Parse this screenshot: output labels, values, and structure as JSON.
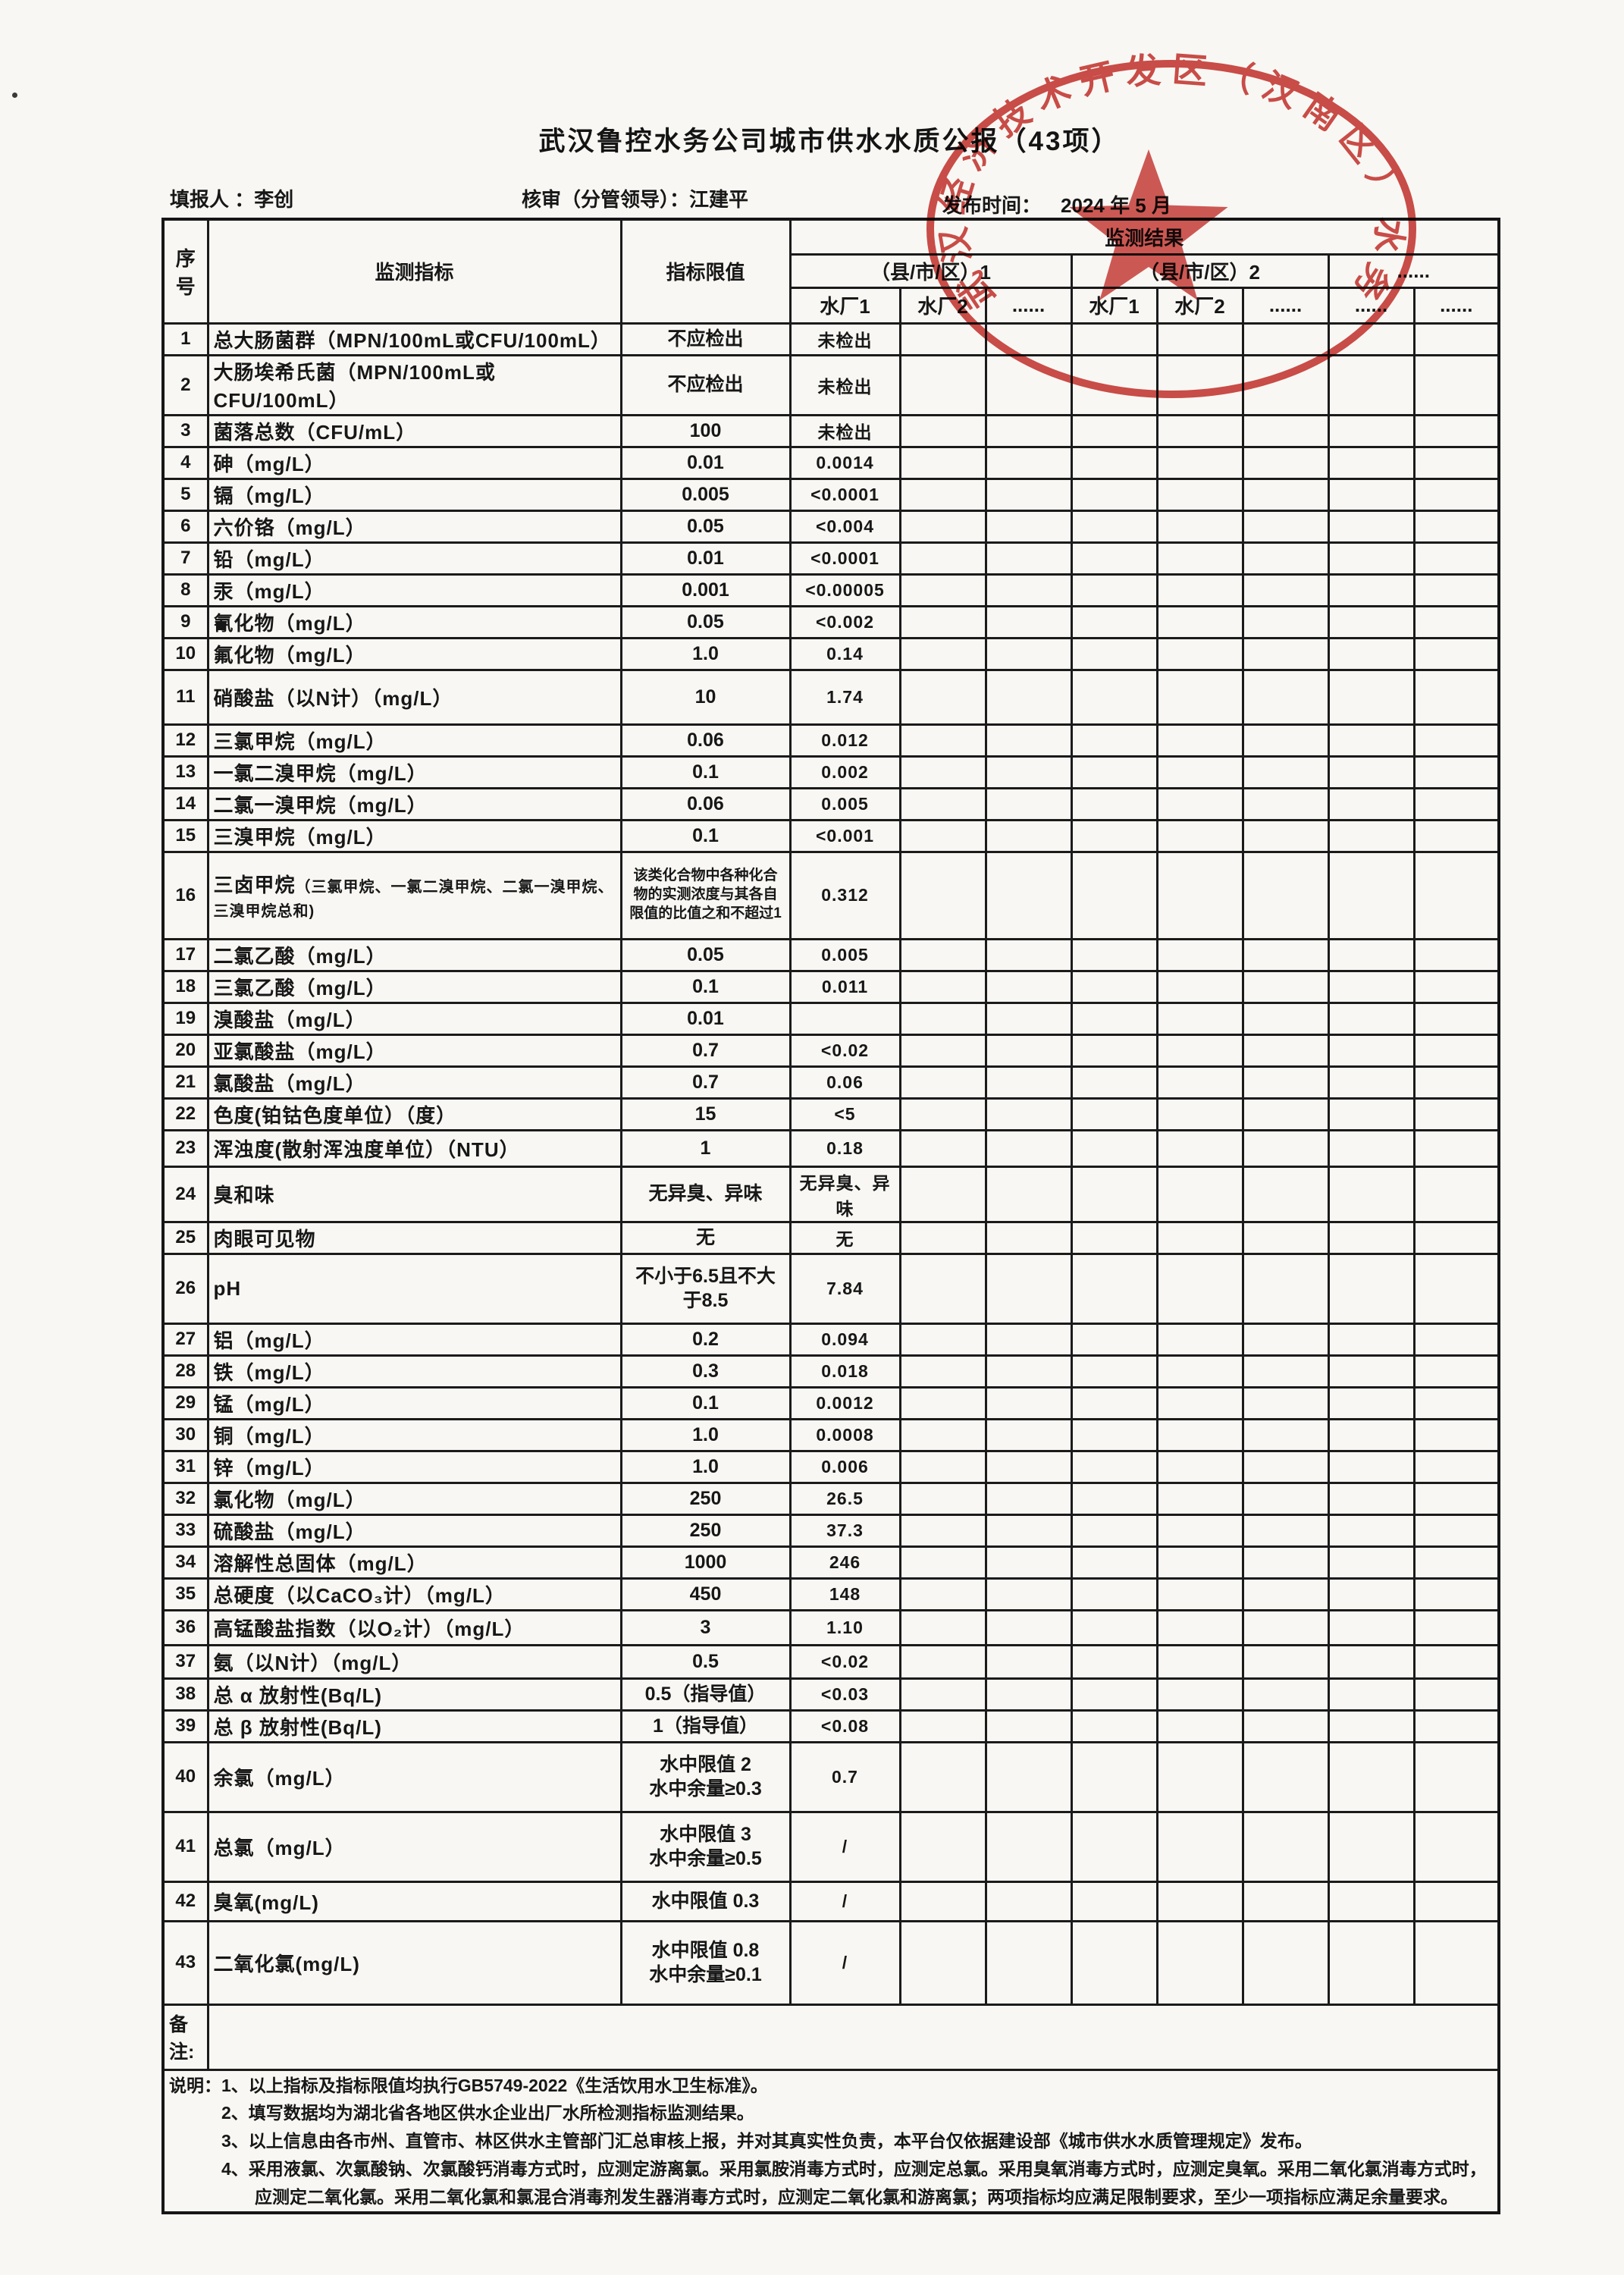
{
  "page": {
    "title": "武汉鲁控水务公司城市供水水质公报（43项）"
  },
  "meta": {
    "filler": "填报人 ：李创",
    "reviewer": "核审（分管领导）：江建平",
    "publish_label": "发布时间：",
    "publish_value": "2024 年 5 月"
  },
  "stamp": {
    "arc_text": "武汉经济技术开发区（汉南区）水务",
    "color": "#c93a36"
  },
  "table": {
    "headers": {
      "no": "序号",
      "indicator": "监测指标",
      "limit": "指标限值",
      "result": "监测结果",
      "regions": [
        "（县/市/区）1",
        "（县/市/区）2",
        "......"
      ],
      "plants": [
        "水厂1",
        "水厂2",
        "......",
        "水厂1",
        "水厂2",
        "......",
        "......",
        "......"
      ]
    },
    "remark_label": "备注:",
    "rows": [
      {
        "no": "1",
        "name": "总大肠菌群（MPN/100mL或CFU/100mL）",
        "limit": "不应检出",
        "values": [
          "未检出",
          "",
          "",
          "",
          "",
          "",
          "",
          ""
        ]
      },
      {
        "no": "2",
        "name": "大肠埃希氏菌（MPN/100mL或CFU/100mL）",
        "limit": "不应检出",
        "values": [
          "未检出",
          "",
          "",
          "",
          "",
          "",
          "",
          ""
        ]
      },
      {
        "no": "3",
        "name": "菌落总数（CFU/mL）",
        "limit": "100",
        "values": [
          "未检出",
          "",
          "",
          "",
          "",
          "",
          "",
          ""
        ]
      },
      {
        "no": "4",
        "name": "砷（mg/L）",
        "limit": "0.01",
        "values": [
          "0.0014",
          "",
          "",
          "",
          "",
          "",
          "",
          ""
        ]
      },
      {
        "no": "5",
        "name": "镉（mg/L）",
        "limit": "0.005",
        "values": [
          "<0.0001",
          "",
          "",
          "",
          "",
          "",
          "",
          ""
        ]
      },
      {
        "no": "6",
        "name": "六价铬（mg/L）",
        "limit": "0.05",
        "values": [
          "<0.004",
          "",
          "",
          "",
          "",
          "",
          "",
          ""
        ]
      },
      {
        "no": "7",
        "name": "铅（mg/L）",
        "limit": "0.01",
        "values": [
          "<0.0001",
          "",
          "",
          "",
          "",
          "",
          "",
          ""
        ]
      },
      {
        "no": "8",
        "name": "汞（mg/L）",
        "limit": "0.001",
        "values": [
          "<0.00005",
          "",
          "",
          "",
          "",
          "",
          "",
          ""
        ]
      },
      {
        "no": "9",
        "name": "氰化物（mg/L）",
        "limit": "0.05",
        "values": [
          "<0.002",
          "",
          "",
          "",
          "",
          "",
          "",
          ""
        ]
      },
      {
        "no": "10",
        "name": "氟化物（mg/L）",
        "limit": "1.0",
        "values": [
          "0.14",
          "",
          "",
          "",
          "",
          "",
          "",
          ""
        ]
      },
      {
        "no": "11",
        "name": "硝酸盐（以N计）（mg/L）",
        "limit": "10",
        "values": [
          "1.74",
          "",
          "",
          "",
          "",
          "",
          "",
          ""
        ],
        "h": 72
      },
      {
        "no": "12",
        "name": "三氯甲烷（mg/L）",
        "limit": "0.06",
        "values": [
          "0.012",
          "",
          "",
          "",
          "",
          "",
          "",
          ""
        ]
      },
      {
        "no": "13",
        "name": "一氯二溴甲烷（mg/L）",
        "limit": "0.1",
        "values": [
          "0.002",
          "",
          "",
          "",
          "",
          "",
          "",
          ""
        ]
      },
      {
        "no": "14",
        "name": "二氯一溴甲烷（mg/L）",
        "limit": "0.06",
        "values": [
          "0.005",
          "",
          "",
          "",
          "",
          "",
          "",
          ""
        ]
      },
      {
        "no": "15",
        "name": "三溴甲烷（mg/L）",
        "limit": "0.1",
        "values": [
          "<0.001",
          "",
          "",
          "",
          "",
          "",
          "",
          ""
        ]
      },
      {
        "no": "16",
        "name": "三卤甲烷",
        "note": "（三氯甲烷、一氯二溴甲烷、二氯一溴甲烷、三溴甲烷总和)",
        "limit": "该类化合物中各种化合物的实测浓度与其各自限值的比值之和不超过1",
        "ls": true,
        "values": [
          "0.312",
          "",
          "",
          "",
          "",
          "",
          "",
          ""
        ],
        "h": 115
      },
      {
        "no": "17",
        "name": "二氯乙酸（mg/L）",
        "limit": "0.05",
        "values": [
          "0.005",
          "",
          "",
          "",
          "",
          "",
          "",
          ""
        ]
      },
      {
        "no": "18",
        "name": "三氯乙酸（mg/L）",
        "limit": "0.1",
        "values": [
          "0.011",
          "",
          "",
          "",
          "",
          "",
          "",
          ""
        ]
      },
      {
        "no": "19",
        "name": "溴酸盐（mg/L）",
        "limit": "0.01",
        "values": [
          "",
          "",
          "",
          "",
          "",
          "",
          "",
          ""
        ]
      },
      {
        "no": "20",
        "name": "亚氯酸盐（mg/L）",
        "limit": "0.7",
        "values": [
          "<0.02",
          "",
          "",
          "",
          "",
          "",
          "",
          ""
        ]
      },
      {
        "no": "21",
        "name": "氯酸盐（mg/L）",
        "limit": "0.7",
        "values": [
          "0.06",
          "",
          "",
          "",
          "",
          "",
          "",
          ""
        ]
      },
      {
        "no": "22",
        "name": "色度(铂钴色度单位）（度）",
        "limit": "15",
        "values": [
          "<5",
          "",
          "",
          "",
          "",
          "",
          "",
          ""
        ]
      },
      {
        "no": "23",
        "name": "浑浊度(散射浑浊度单位）（NTU）",
        "limit": "1",
        "values": [
          "0.18",
          "",
          "",
          "",
          "",
          "",
          "",
          ""
        ],
        "h": 48
      },
      {
        "no": "24",
        "name": "臭和味",
        "limit": "无异臭、异味",
        "values": [
          "无异臭、异味",
          "",
          "",
          "",
          "",
          "",
          "",
          ""
        ],
        "h": 44
      },
      {
        "no": "25",
        "name": "肉眼可见物",
        "limit": "无",
        "values": [
          "无",
          "",
          "",
          "",
          "",
          "",
          "",
          ""
        ]
      },
      {
        "no": "26",
        "name": "pH",
        "limit": "不小于6.5且不大于8.5",
        "values": [
          "7.84",
          "",
          "",
          "",
          "",
          "",
          "",
          ""
        ],
        "h": 92
      },
      {
        "no": "27",
        "name": "铝（mg/L）",
        "limit": "0.2",
        "values": [
          "0.094",
          "",
          "",
          "",
          "",
          "",
          "",
          ""
        ]
      },
      {
        "no": "28",
        "name": "铁（mg/L）",
        "limit": "0.3",
        "values": [
          "0.018",
          "",
          "",
          "",
          "",
          "",
          "",
          ""
        ]
      },
      {
        "no": "29",
        "name": "锰（mg/L）",
        "limit": "0.1",
        "values": [
          "0.0012",
          "",
          "",
          "",
          "",
          "",
          "",
          ""
        ]
      },
      {
        "no": "30",
        "name": "铜（mg/L）",
        "limit": "1.0",
        "values": [
          "0.0008",
          "",
          "",
          "",
          "",
          "",
          "",
          ""
        ]
      },
      {
        "no": "31",
        "name": "锌（mg/L）",
        "limit": "1.0",
        "values": [
          "0.006",
          "",
          "",
          "",
          "",
          "",
          "",
          ""
        ]
      },
      {
        "no": "32",
        "name": "氯化物（mg/L）",
        "limit": "250",
        "values": [
          "26.5",
          "",
          "",
          "",
          "",
          "",
          "",
          ""
        ]
      },
      {
        "no": "33",
        "name": "硫酸盐（mg/L）",
        "limit": "250",
        "values": [
          "37.3",
          "",
          "",
          "",
          "",
          "",
          "",
          ""
        ]
      },
      {
        "no": "34",
        "name": "溶解性总固体（mg/L）",
        "limit": "1000",
        "values": [
          "246",
          "",
          "",
          "",
          "",
          "",
          "",
          ""
        ]
      },
      {
        "no": "35",
        "name": "总硬度（以CaCO₃计）（mg/L）",
        "limit": "450",
        "values": [
          "148",
          "",
          "",
          "",
          "",
          "",
          "",
          ""
        ]
      },
      {
        "no": "36",
        "name": "高锰酸盐指数（以O₂计）（mg/L）",
        "limit": "3",
        "values": [
          "1.10",
          "",
          "",
          "",
          "",
          "",
          "",
          ""
        ],
        "h": 46
      },
      {
        "no": "37",
        "name": "氨（以N计）（mg/L）",
        "limit": "0.5",
        "values": [
          "<0.02",
          "",
          "",
          "",
          "",
          "",
          "",
          ""
        ],
        "h": 44
      },
      {
        "no": "38",
        "name": "总 α 放射性(Bq/L)",
        "limit": "0.5（指导值）",
        "values": [
          "<0.03",
          "",
          "",
          "",
          "",
          "",
          "",
          ""
        ]
      },
      {
        "no": "39",
        "name": "总 β 放射性(Bq/L)",
        "limit": "1（指导值）",
        "values": [
          "<0.08",
          "",
          "",
          "",
          "",
          "",
          "",
          ""
        ]
      },
      {
        "no": "40",
        "name": "余氯（mg/L）",
        "limit": "水中限值 2\n水中余量≥0.3",
        "values": [
          "0.7",
          "",
          "",
          "",
          "",
          "",
          "",
          ""
        ],
        "h": 92
      },
      {
        "no": "41",
        "name": "总氯（mg/L）",
        "limit": "水中限值 3\n水中余量≥0.5",
        "values": [
          "/",
          "",
          "",
          "",
          "",
          "",
          "",
          ""
        ],
        "h": 92
      },
      {
        "no": "42",
        "name": "臭氧(mg/L)",
        "limit": "水中限值 0.3",
        "values": [
          "/",
          "",
          "",
          "",
          "",
          "",
          "",
          ""
        ],
        "h": 52
      },
      {
        "no": "43",
        "name": "二氧化氯(mg/L)",
        "limit": "水中限值 0.8\n水中余量≥0.1",
        "values": [
          "/",
          "",
          "",
          "",
          "",
          "",
          "",
          ""
        ],
        "h": 110
      }
    ]
  },
  "notes": {
    "label": "说明：",
    "lines": [
      "1、以上指标及指标限值均执行GB5749-2022《生活饮用水卫生标准》。",
      "2、填写数据均为湖北省各地区供水企业出厂水所检测指标监测结果。",
      "3、以上信息由各市州、直管市、林区供水主管部门汇总审核上报，并对其真实性负责，本平台仅依据建设部《城市供水水质管理规定》发布。",
      "4、采用液氯、次氯酸钠、次氯酸钙消毒方式时，应测定游离氯。采用氯胺消毒方式时，应测定总氯。采用臭氧消毒方式时，应测定臭氧。采用二氧化氯消毒方式时，应测定二氧化氯。采用二氧化氯和氯混合消毒剂发生器消毒方式时，应测定二氧化氯和游离氯；两项指标均应满足限制要求，至少一项指标应满足余量要求。"
    ]
  }
}
